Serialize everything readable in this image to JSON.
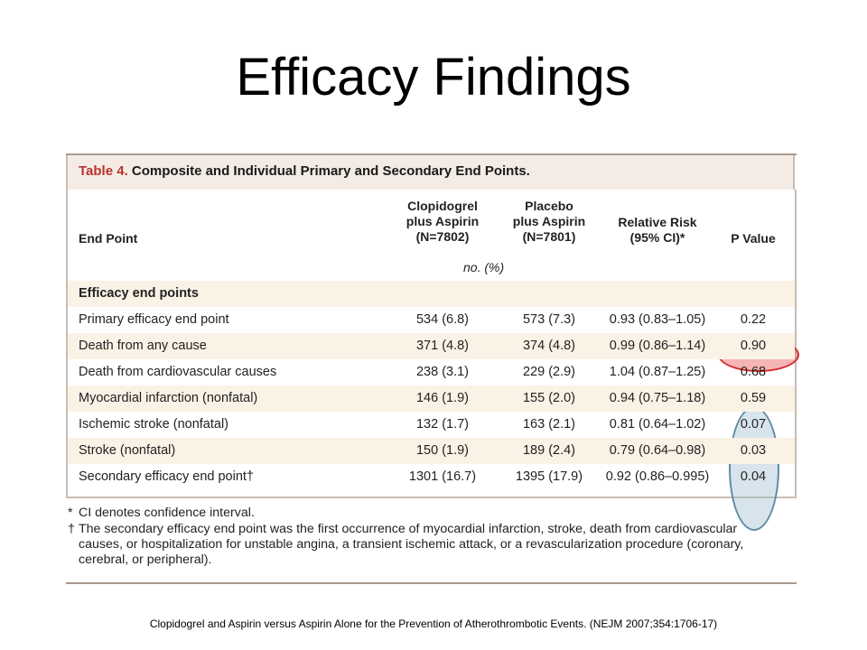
{
  "slide": {
    "title": "Efficacy Findings",
    "citation": "Clopidogrel and Aspirin versus Aspirin Alone for the Prevention of Atherothrombotic Events.  (NEJM 2007;354:1706-17)"
  },
  "table": {
    "caption_label": "Table 4.",
    "caption_text": "Composite and Individual Primary and Secondary End Points.",
    "headers": {
      "end_point": "End Point",
      "clopidogrel": [
        "Clopidogrel",
        "plus Aspirin",
        "(N=7802)"
      ],
      "placebo": [
        "Placebo",
        "plus Aspirin",
        "(N=7801)"
      ],
      "relative_risk": [
        "Relative Risk",
        "(95% CI)*"
      ],
      "p_value": "P Value"
    },
    "units": "no. (%)",
    "section_label": "Efficacy end points",
    "rows": [
      {
        "end_point": "Primary efficacy end point",
        "clopidogrel": "534 (6.8)",
        "placebo": "573 (7.3)",
        "relative_risk": "0.93 (0.83–1.05)",
        "p_value": "0.22"
      },
      {
        "end_point": "Death from any cause",
        "clopidogrel": "371 (4.8)",
        "placebo": "374 (4.8)",
        "relative_risk": "0.99 (0.86–1.14)",
        "p_value": "0.90"
      },
      {
        "end_point": "Death from cardiovascular causes",
        "clopidogrel": "238 (3.1)",
        "placebo": "229 (2.9)",
        "relative_risk": "1.04 (0.87–1.25)",
        "p_value": "0.68"
      },
      {
        "end_point": "Myocardial infarction (nonfatal)",
        "clopidogrel": "146 (1.9)",
        "placebo": "155 (2.0)",
        "relative_risk": "0.94 (0.75–1.18)",
        "p_value": "0.59"
      },
      {
        "end_point": "Ischemic stroke (nonfatal)",
        "clopidogrel": "132 (1.7)",
        "placebo": "163 (2.1)",
        "relative_risk": "0.81 (0.64–1.02)",
        "p_value": "0.07"
      },
      {
        "end_point": "Stroke (nonfatal)",
        "clopidogrel": "150 (1.9)",
        "placebo": "189 (2.4)",
        "relative_risk": "0.79 (0.64–0.98)",
        "p_value": "0.03"
      },
      {
        "end_point": "Secondary efficacy end point†",
        "clopidogrel": "1301 (16.7)",
        "placebo": "1395 (17.9)",
        "relative_risk": "0.92 (0.86–0.995)",
        "p_value": "0.04"
      }
    ],
    "footnotes": {
      "star_mark": "*",
      "star_text": "CI denotes confidence interval.",
      "dagger_mark": "†",
      "dagger_lines": [
        "The secondary efficacy end point was the first occurrence of myocardial infarction, stroke, death from cardiovascular",
        "causes, or hospitalization for unstable angina, a transient ischemic attack, or a revascularization procedure (coronary,",
        "cerebral, or peripheral)."
      ]
    }
  },
  "colors": {
    "caption_accent": "#b8312f",
    "shaded_row": "#fbf2e6",
    "highlight_red": "#d62c2c",
    "highlight_blue": "#5e8ca4"
  }
}
